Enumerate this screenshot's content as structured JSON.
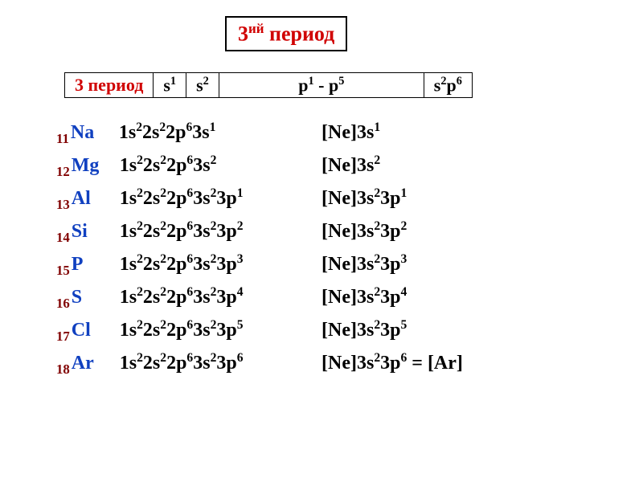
{
  "title_html": "3<sup>ий</sup> период",
  "header": {
    "period_label": "3 период",
    "cells": [
      "s<sup>1</sup>",
      "s<sup>2</sup>",
      "p<sup>1</sup> - p<sup>5</sup>",
      "s<sup>2</sup>p<sup>6</sup>"
    ]
  },
  "elements": [
    {
      "n": "11",
      "sym": "Na",
      "full": "1s<sup>2</sup>2s<sup>2</sup>2p<sup>6</sup>3s<sup>1</sup>",
      "short": "[Ne]3s<sup>1</sup>"
    },
    {
      "n": "12",
      "sym": "Mg",
      "full": "1s<sup>2</sup>2s<sup>2</sup>2p<sup>6</sup>3s<sup>2</sup>",
      "short": "[Ne]3s<sup>2</sup>"
    },
    {
      "n": "13",
      "sym": "Al",
      "full": "1s<sup>2</sup>2s<sup>2</sup>2p<sup>6</sup>3s<sup>2</sup>3p<sup>1</sup>",
      "short": "[Ne]3s<sup>2</sup>3p<sup>1</sup>"
    },
    {
      "n": "14",
      "sym": "Si",
      "full": "1s<sup>2</sup>2s<sup>2</sup>2p<sup>6</sup>3s<sup>2</sup>3p<sup>2</sup>",
      "short": "[Ne]3s<sup>2</sup>3p<sup>2</sup>"
    },
    {
      "n": "15",
      "sym": "P",
      "full": "1s<sup>2</sup>2s<sup>2</sup>2p<sup>6</sup>3s<sup>2</sup>3p<sup>3</sup>",
      "short": "[Ne]3s<sup>2</sup>3p<sup>3</sup>"
    },
    {
      "n": "16",
      "sym": "S",
      "full": "1s<sup>2</sup>2s<sup>2</sup>2p<sup>6</sup>3s<sup>2</sup>3p<sup>4</sup>",
      "short": "[Ne]3s<sup>2</sup>3p<sup>4</sup>"
    },
    {
      "n": "17",
      "sym": "Cl",
      "full": "1s<sup>2</sup>2s<sup>2</sup>2p<sup>6</sup>3s<sup>2</sup>3p<sup>5</sup>",
      "short": "[Ne]3s<sup>2</sup>3p<sup>5</sup>"
    },
    {
      "n": "18",
      "sym": "Ar",
      "full": "1s<sup>2</sup>2s<sup>2</sup>2p<sup>6</sup>3s<sup>2</sup>3p<sup>6</sup>",
      "short": "[Ne]3s<sup>2</sup>3p<sup>6</sup> = [Ar]"
    }
  ],
  "colors": {
    "title_red": "#d00000",
    "atomic_brown": "#800000",
    "symbol_blue": "#1040c0",
    "black": "#000000",
    "white": "#ffffff"
  },
  "typography": {
    "title_fontsize": 26,
    "table_fontsize": 22,
    "row_fontsize": 24,
    "font_family": "Times New Roman"
  }
}
